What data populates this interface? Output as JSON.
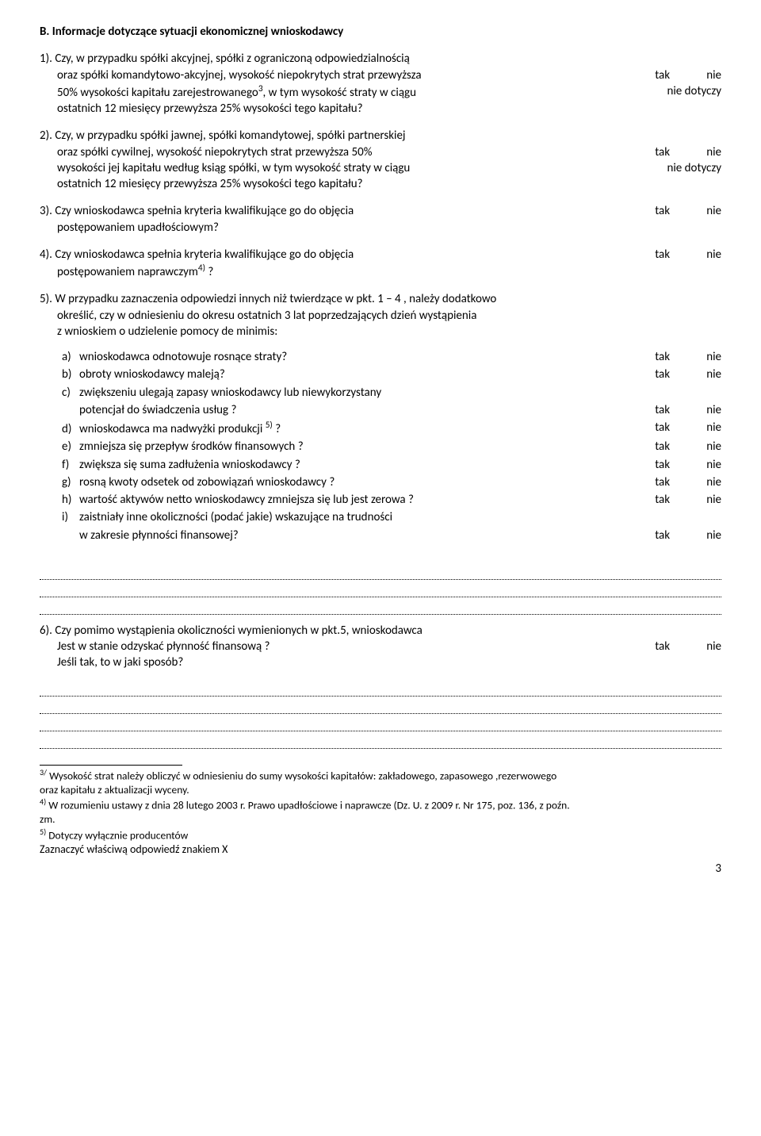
{
  "section_title": "B. Informacje dotyczące sytuacji ekonomicznej wnioskodawcy",
  "answers": {
    "tak": "tak",
    "nie": "nie",
    "nie_dotyczy": "nie dotyczy"
  },
  "q1": {
    "num": "1).",
    "l1": "Czy, w przypadku spółki akcyjnej, spółki z ograniczoną odpowiedzialnością",
    "l2": "oraz spółki komandytowo-akcyjnej, wysokość niepokrytych strat przewyższa",
    "l3_a": "50% wysokości kapitału zarejestrowanego",
    "l3_b": ", w tym wysokość straty w ciągu",
    "l4": "ostatnich 12 miesięcy przewyższa 25% wysokości tego kapitału?",
    "sup": "3"
  },
  "q2": {
    "num": "2).",
    "l1": "Czy, w przypadku spółki jawnej, spółki komandytowej, spółki partnerskiej",
    "l2": "oraz spółki cywilnej, wysokość niepokrytych strat przewyższa 50%",
    "l3": "wysokości jej kapitału według ksiąg spółki, w tym wysokość straty  w ciągu",
    "l4": "ostatnich 12 miesięcy przewyższa 25% wysokości tego kapitału?"
  },
  "q3": {
    "num": "3).",
    "l1": "Czy wnioskodawca spełnia kryteria kwalifikujące go do objęcia",
    "l2": "postępowaniem upadłościowym?"
  },
  "q4": {
    "num": "4).",
    "l1": "Czy wnioskodawca spełnia kryteria kwalifikujące go do objęcia",
    "l2_a": "postępowaniem naprawczym",
    "l2_b": " ?",
    "sup": "4)"
  },
  "q5": {
    "num": "5).",
    "l1": "W przypadku zaznaczenia odpowiedzi innych niż twierdzące w pkt. 1 – 4 , należy dodatkowo",
    "l2": "określić, czy w odniesieniu do okresu ostatnich 3 lat poprzedzających dzień wystąpienia",
    "l3": "z wnioskiem o udzielenie pomocy de minimis:",
    "items": [
      {
        "label": "a)",
        "text": "wnioskodawca odnotowuje rosnące straty?",
        "ans": true
      },
      {
        "label": "b)",
        "text": "obroty wnioskodawcy maleją?",
        "ans": true
      },
      {
        "label": "c)",
        "text": "zwiększeniu ulegają zapasy wnioskodawcy lub niewykorzystany",
        "ans": false
      },
      {
        "label": "",
        "text": "potencjał do świadczenia usług ?",
        "ans": true
      },
      {
        "label": "d)",
        "text_a": "wnioskodawca ma nadwyżki produkcji ",
        "sup": "5)",
        "text_b": " ?",
        "ans": true
      },
      {
        "label": "e)",
        "text": "zmniejsza się przepływ środków finansowych ?",
        "ans": true
      },
      {
        "label": "f)",
        "text": "zwiększa się suma zadłużenia wnioskodawcy ?",
        "ans": true
      },
      {
        "label": "g)",
        "text": "rosną kwoty odsetek od zobowiązań wnioskodawcy ?",
        "ans": true
      },
      {
        "label": "h)",
        "text": "wartość aktywów netto wnioskodawcy zmniejsza się lub jest zerowa ?",
        "ans": true
      },
      {
        "label": "i)",
        "text": "zaistniały inne okoliczności (podać jakie) wskazujące na trudności",
        "ans": false
      },
      {
        "label": "",
        "text": "w zakresie płynności finansowej?",
        "ans": true
      }
    ]
  },
  "q6": {
    "num": "6).",
    "l1": "Czy pomimo wystąpienia okoliczności wymienionych w pkt.5, wnioskodawca",
    "l2": "Jest w stanie odzyskać płynność finansową ?",
    "l3": "Jeśli tak, to w jaki sposób?"
  },
  "footnotes": {
    "f3a": " Wysokość strat należy obliczyć w odniesieniu do sumy wysokości kapitałów: zakładowego, zapasowego ,rezerwowego",
    "f3b": "oraz kapitału z aktualizacji wyceny.",
    "f4a": " W rozumieniu ustawy z dnia 28 lutego 2003 r. Prawo upadłościowe i naprawcze (Dz. U. z 2009 r. Nr 175, poz. 136, z poźn.",
    "f4b": "zm.",
    "f5": " Dotyczy wyłącznie producentów",
    "sup3": "3/",
    "sup4": "4)",
    "sup5": "5)"
  },
  "final_note": "Zaznaczyć właściwą odpowiedź znakiem X",
  "page_number": "3"
}
